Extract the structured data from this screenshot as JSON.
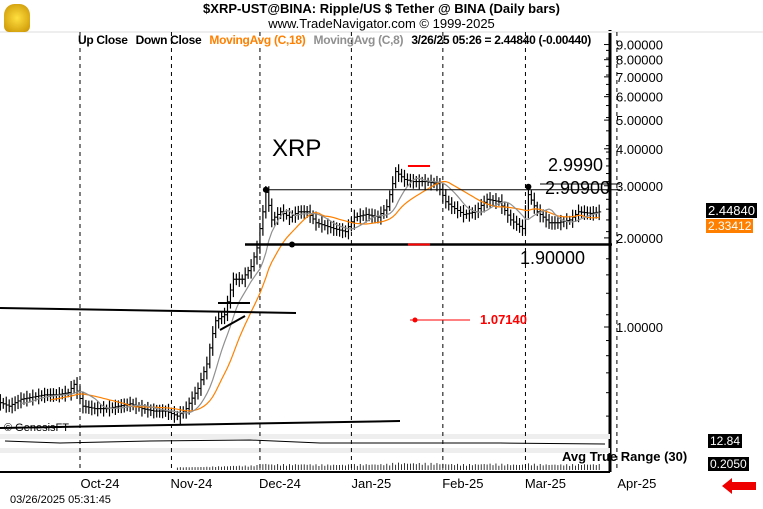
{
  "header": {
    "title": "$XRP-UST@BINA:  Ripple/US $ Tether @ BINA  (Daily bars)",
    "subtitle": "www.TradeNavigator.com © 1999-2025"
  },
  "legend": {
    "up": "Up Close",
    "down": "Down Close",
    "ma18": "MovingAvg (C,18)",
    "ma8": "MovingAvg (C,8)",
    "quote": "3/26/25 05:26 = 2.44840 (-0.00440)"
  },
  "colors": {
    "ma18": "#ff8000",
    "ma8": "#909090",
    "bars": "#000000",
    "marker": "#ff0000"
  },
  "footer": {
    "timestamp": "03/26/2025 05:31:45",
    "copyright": "© GenesisFT"
  },
  "annotations": {
    "symbol": "XRP",
    "resistance": "2.90900",
    "resistance2": "2.9990",
    "support": "1.90000",
    "marker": "1.07140"
  },
  "panes": {
    "mid_value": "12.84",
    "atr_label": "Avg True Range (30)",
    "atr_value": "0.2050"
  },
  "chart_data": {
    "type": "ohlc",
    "scale": "log",
    "ylim": [
      0.45,
      9.5
    ],
    "yticks": [
      "9.00000",
      "8.00000",
      "7.00000",
      "6.00000",
      "5.00000",
      "4.00000",
      "3.00000",
      "2.00000",
      "1.00000"
    ],
    "xticks": [
      "Oct-24",
      "Nov-24",
      "Dec-24",
      "Jan-25",
      "Feb-25",
      "Mar-25",
      "Apr-25"
    ],
    "last_price": "2.44840",
    "ma18_last": "2.33412",
    "closes": [
      [
        "2024-09-03",
        0.56
      ],
      [
        "2024-09-07",
        0.54
      ],
      [
        "2024-09-11",
        0.57
      ],
      [
        "2024-09-15",
        0.58
      ],
      [
        "2024-09-19",
        0.59
      ],
      [
        "2024-09-23",
        0.59
      ],
      [
        "2024-09-27",
        0.6
      ],
      [
        "2024-09-29",
        0.64
      ],
      [
        "2024-10-02",
        0.54
      ],
      [
        "2024-10-06",
        0.53
      ],
      [
        "2024-10-10",
        0.53
      ],
      [
        "2024-10-14",
        0.54
      ],
      [
        "2024-10-18",
        0.55
      ],
      [
        "2024-10-22",
        0.53
      ],
      [
        "2024-10-26",
        0.52
      ],
      [
        "2024-10-30",
        0.52
      ],
      [
        "2024-11-03",
        0.5
      ],
      [
        "2024-11-06",
        0.53
      ],
      [
        "2024-11-10",
        0.62
      ],
      [
        "2024-11-13",
        0.75
      ],
      [
        "2024-11-16",
        1.05
      ],
      [
        "2024-11-19",
        1.1
      ],
      [
        "2024-11-22",
        1.45
      ],
      [
        "2024-11-25",
        1.45
      ],
      [
        "2024-11-28",
        1.6
      ],
      [
        "2024-11-30",
        1.85
      ],
      [
        "2024-12-02",
        2.45
      ],
      [
        "2024-12-03",
        2.85
      ],
      [
        "2024-12-05",
        2.3
      ],
      [
        "2024-12-08",
        2.45
      ],
      [
        "2024-12-11",
        2.35
      ],
      [
        "2024-12-14",
        2.45
      ],
      [
        "2024-12-17",
        2.45
      ],
      [
        "2024-12-20",
        2.25
      ],
      [
        "2024-12-23",
        2.2
      ],
      [
        "2024-12-26",
        2.15
      ],
      [
        "2024-12-30",
        2.1
      ],
      [
        "2025-01-02",
        2.35
      ],
      [
        "2025-01-06",
        2.4
      ],
      [
        "2025-01-10",
        2.35
      ],
      [
        "2025-01-13",
        2.55
      ],
      [
        "2025-01-15",
        3.05
      ],
      [
        "2025-01-16",
        3.35
      ],
      [
        "2025-01-19",
        3.15
      ],
      [
        "2025-01-22",
        3.1
      ],
      [
        "2025-01-26",
        3.1
      ],
      [
        "2025-01-30",
        3.05
      ],
      [
        "2025-02-02",
        2.65
      ],
      [
        "2025-02-04",
        2.55
      ],
      [
        "2025-02-08",
        2.4
      ],
      [
        "2025-02-12",
        2.45
      ],
      [
        "2025-02-16",
        2.7
      ],
      [
        "2025-02-20",
        2.65
      ],
      [
        "2025-02-24",
        2.3
      ],
      [
        "2025-02-28",
        2.15
      ],
      [
        "2025-03-02",
        2.8
      ],
      [
        "2025-03-05",
        2.45
      ],
      [
        "2025-03-09",
        2.25
      ],
      [
        "2025-03-12",
        2.25
      ],
      [
        "2025-03-16",
        2.3
      ],
      [
        "2025-03-19",
        2.45
      ],
      [
        "2025-03-23",
        2.42
      ],
      [
        "2025-03-26",
        2.4484
      ]
    ]
  }
}
